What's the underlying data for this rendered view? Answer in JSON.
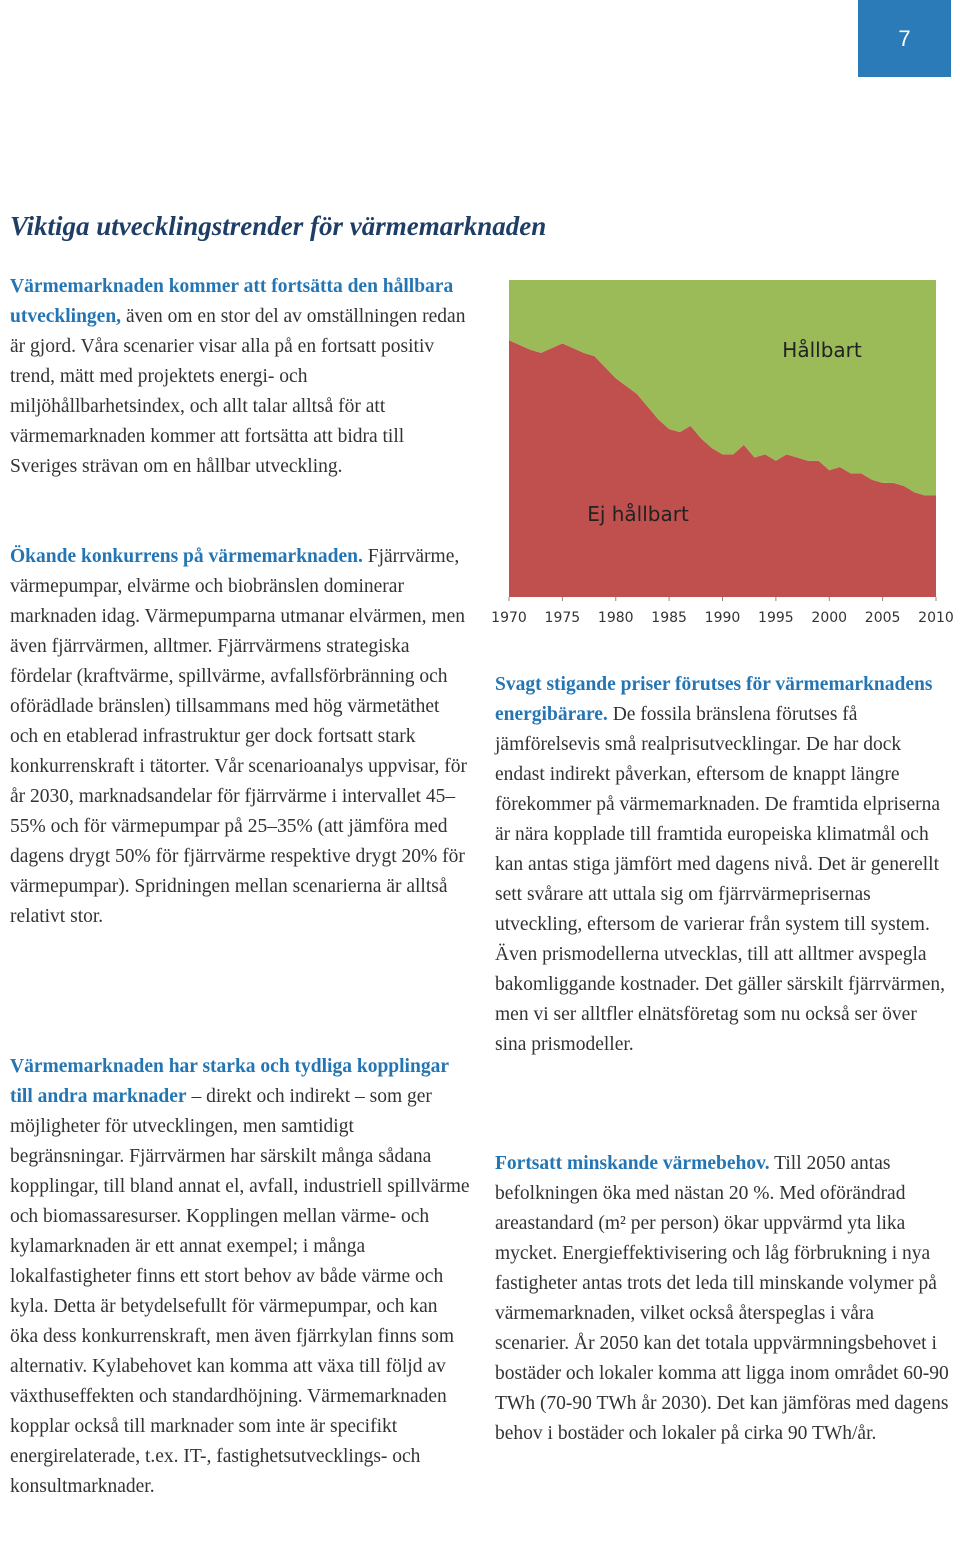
{
  "page_number": "7",
  "heading": "Viktiga utvecklingstrender för värmemarknaden",
  "paragraphs": [
    {
      "lead": "Värmemarknaden kommer att fortsätta den hållbara utvecklingen,",
      "text": " även om en stor del av omställningen redan är gjord. Våra scenarier visar alla på en fortsatt positiv trend, mätt med projektets energi- och miljöhållbarhetsindex, och allt talar alltså för att värmemarknaden kommer att fortsätta att bidra till Sveriges strävan om en hållbar utveckling."
    },
    {
      "lead": "Ökande konkurrens på värmemarknaden.",
      "text": " Fjärrvärme, värmepumpar, elvärme och biobränslen dominerar marknaden idag. Värmepumparna utmanar elvärmen, men även fjärrvärmen, alltmer. Fjärrvärmens strategiska fördelar (kraftvärme, spillvärme, avfallsförbränning och oförädlade bränslen) tillsammans med hög värmetäthet och en etablerad infrastruktur ger dock fortsatt stark konkurrenskraft i tätorter. Vår scenarioanalys uppvisar, för år 2030, marknadsandelar för fjärrvärme i intervallet 45–55% och för värmepumpar på 25–35% (att jämföra med dagens drygt 50% för fjärrvärme respektive drygt 20% för värmepumpar). Spridningen mellan scenarierna är alltså relativt stor."
    },
    {
      "lead": "Värmemarknaden har starka och tydliga kopplingar till andra marknader",
      "text": " – direkt och indirekt – som ger möjligheter för utvecklingen, men samtidigt begränsningar. Fjärrvärmen har särskilt många sådana kopplingar, till bland annat el, avfall, industriell spillvärme och biomassaresurser. Kopplingen mellan värme- och kylamarknaden är ett annat exempel; i många lokalfastigheter finns ett stort behov av både värme och kyla. Detta är betydelsefullt för värmepumpar, och kan öka dess konkurrenskraft, men även fjärrkylan finns som alternativ. Kylabehovet kan komma att växa till följd av växthuseffekten och standardhöjning. Värmemarknaden kopplar också till marknader som inte är specifikt energirelaterade, t.ex. IT-, fastighetsutvecklings- och konsultmarknader."
    },
    {
      "lead": "Svagt stigande priser förutses för värmemarknadens energibärare.",
      "text": " De fossila bränslena förutses få jämförelsevis små realprisutvecklingar. De har dock endast indirekt påverkan, eftersom de knappt längre förekommer på värmemarknaden. De framtida elpriserna är nära kopplade till framtida europeiska klimatmål och kan antas stiga jämfört med dagens nivå. Det är generellt sett svårare att uttala sig om fjärrvärmeprisernas utveckling, eftersom de varierar från system till system. Även prismodellerna utvecklas, till att alltmer avspegla bakomliggande kostnader. Det gäller särskilt fjärrvärmen, men vi ser alltfler elnätsföretag som nu också ser över sina prismodeller."
    },
    {
      "lead": "Fortsatt minskande värmebehov.",
      "text": " Till 2050 antas befolkningen öka med nästan 20 %. Med oförändrad areastandard (m² per person) ökar uppvärmd yta lika mycket. Energieffektivisering och låg förbrukning i nya fastigheter antas trots det leda till minskande volymer på värmemarknaden, vilket också återspeglas i våra scenarier. År 2050 kan det totala uppvärmningsbehovet i bostäder och lokaler komma att ligga inom området 60-90 TWh (70-90 TWh år 2030). Det kan jämföras med dagens behov i bostäder och lokaler på cirka 90 TWh/år."
    }
  ],
  "chart_data": {
    "type": "stacked-area",
    "x": [
      1970,
      1972,
      1973,
      1975,
      1977,
      1978,
      1980,
      1982,
      1984,
      1985,
      1986,
      1987,
      1988,
      1989,
      1990,
      1991,
      1992,
      1993,
      1994,
      1995,
      1996,
      1997,
      1998,
      1999,
      2000,
      2001,
      2002,
      2003,
      2004,
      2005,
      2006,
      2007,
      2008,
      2009,
      2010
    ],
    "series": [
      {
        "name": "Ej hållbart",
        "color": "#c0504d",
        "values": [
          81,
          78,
          77,
          80,
          77,
          76,
          69,
          64,
          56,
          53,
          52,
          54,
          50,
          47,
          45,
          45,
          48,
          44,
          45,
          43,
          45,
          44,
          43,
          43,
          40,
          41,
          39,
          39,
          37,
          36,
          36,
          35,
          33,
          32,
          32
        ]
      },
      {
        "name": "Hållbart",
        "color": "#9bbb59",
        "values": [
          19,
          22,
          23,
          20,
          23,
          24,
          31,
          36,
          44,
          47,
          48,
          46,
          50,
          53,
          55,
          55,
          52,
          56,
          55,
          57,
          55,
          56,
          57,
          57,
          60,
          59,
          61,
          61,
          63,
          64,
          64,
          65,
          67,
          68,
          68
        ]
      }
    ],
    "xlim": [
      1970,
      2010
    ],
    "xticks": [
      1970,
      1975,
      1980,
      1985,
      1990,
      1995,
      2000,
      2005,
      2010
    ],
    "ylim": [
      0,
      100
    ]
  }
}
